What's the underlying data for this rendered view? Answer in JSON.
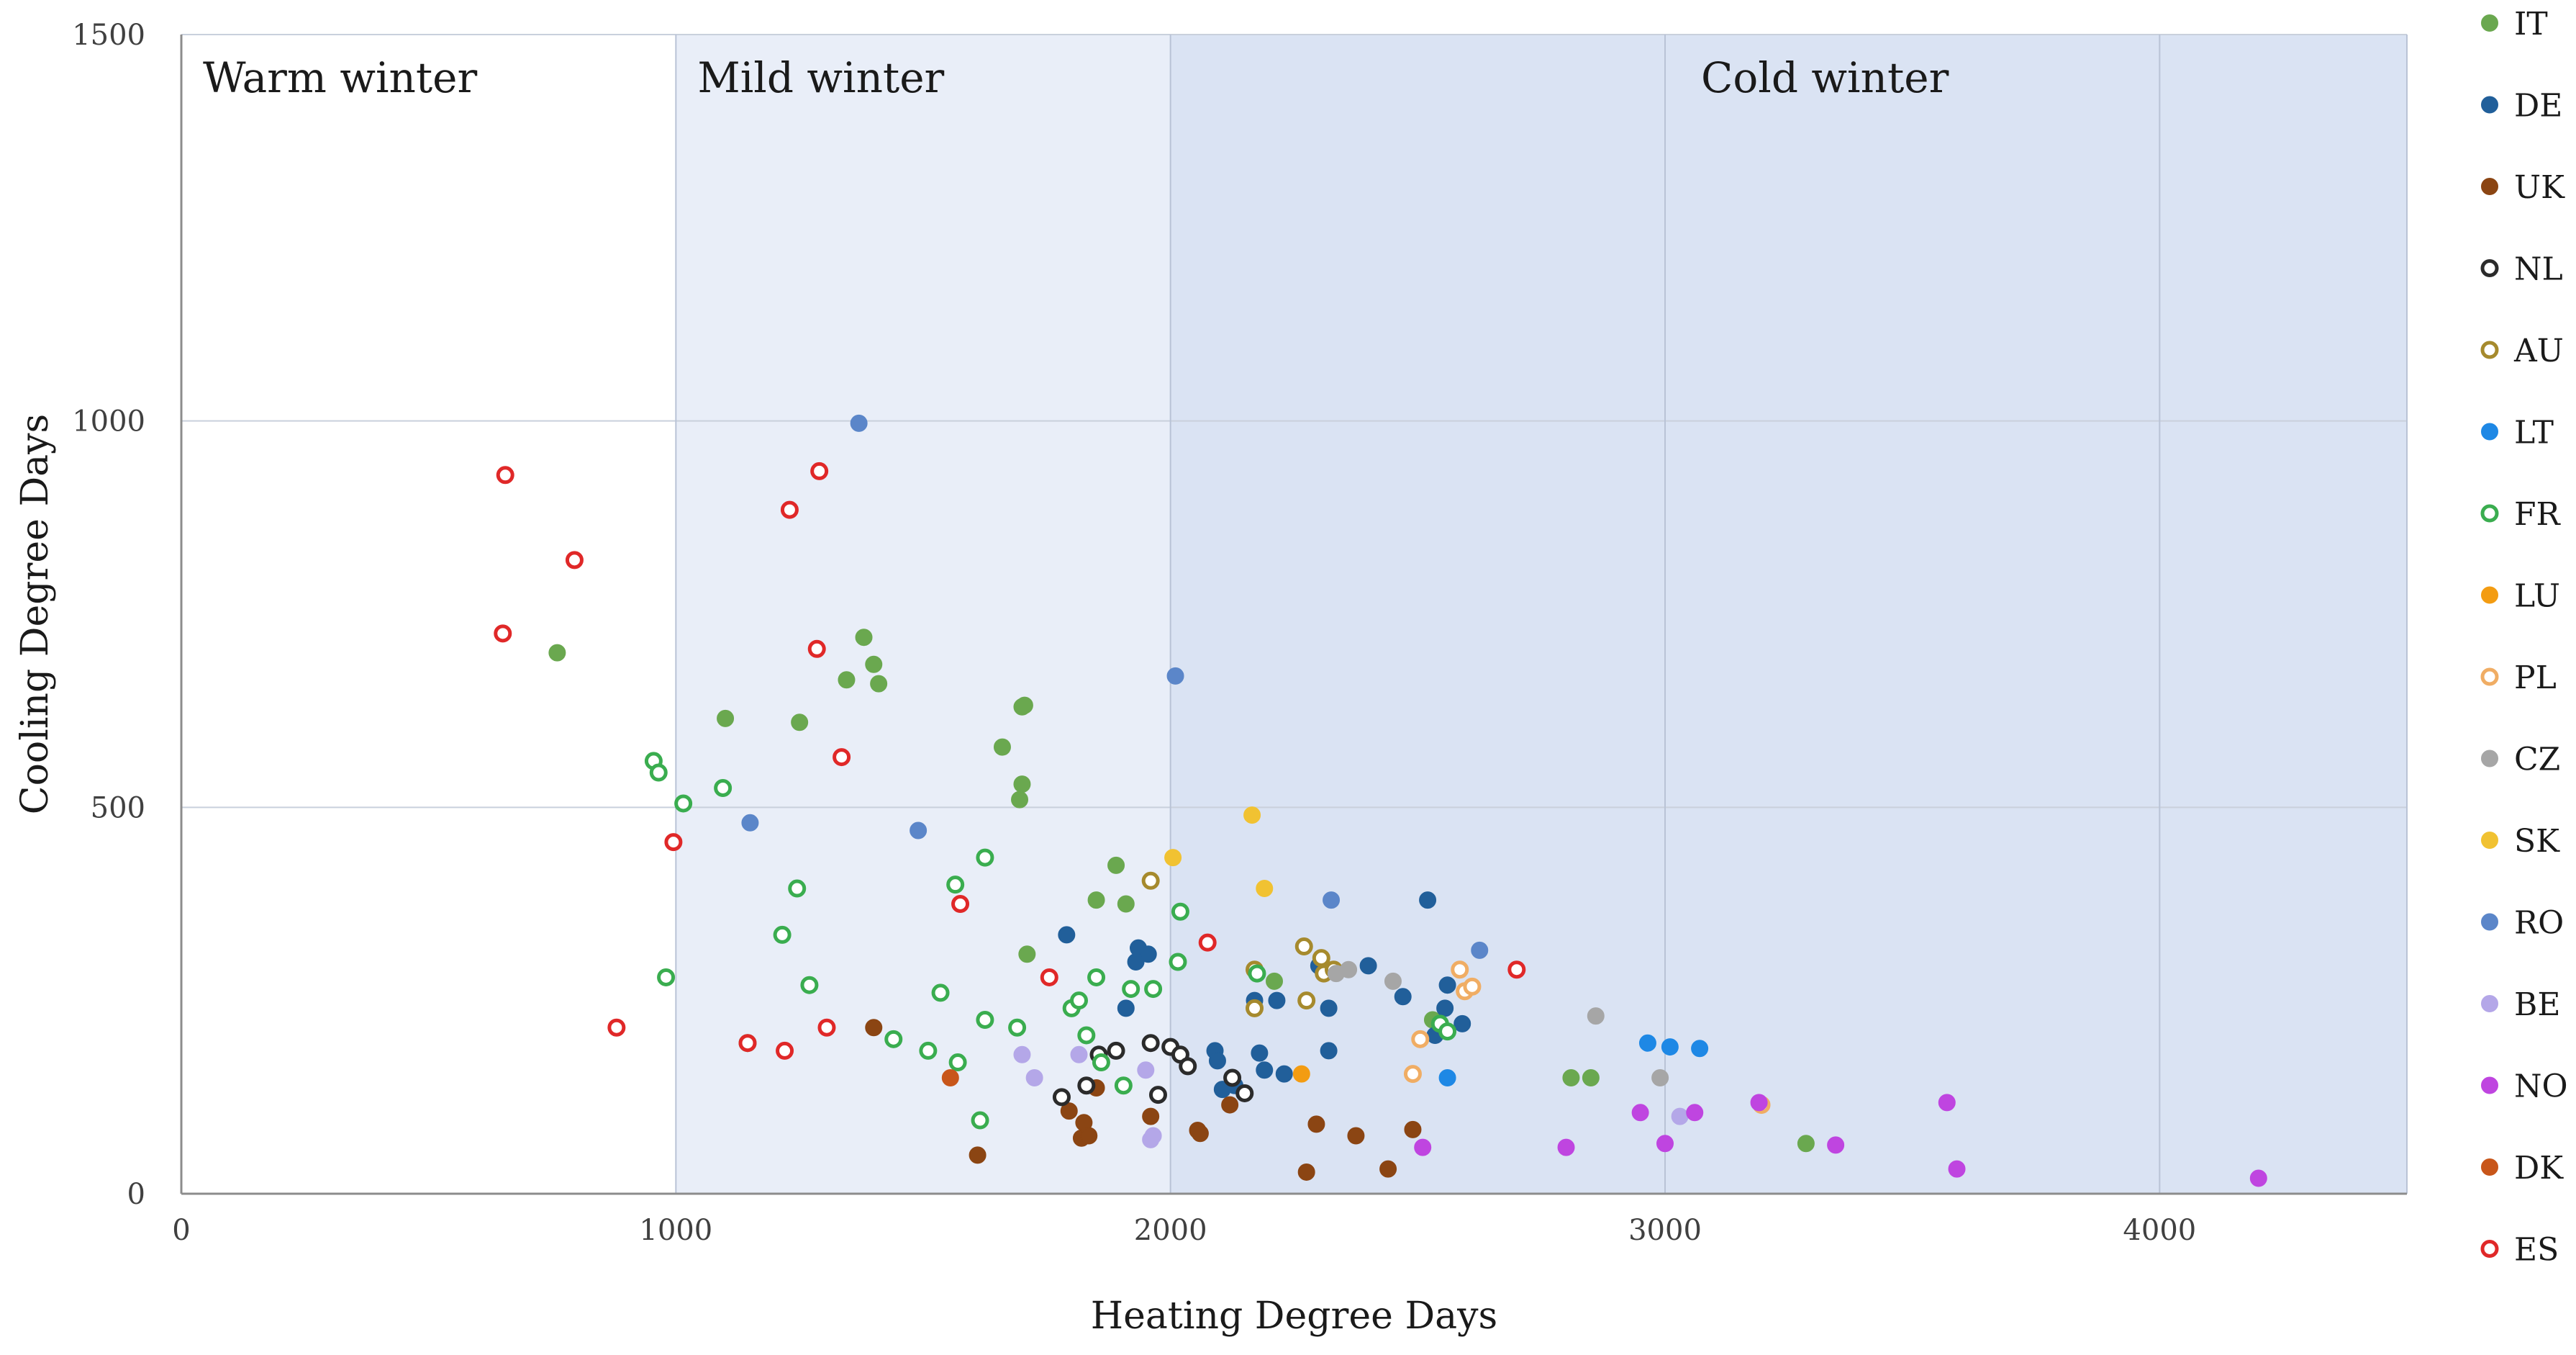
{
  "chart_data": {
    "type": "scatter",
    "title": "",
    "xlabel": "Heating Degree Days",
    "ylabel": "Cooling Degree Days",
    "xlim": [
      0,
      4500
    ],
    "ylim": [
      0,
      1500
    ],
    "x_ticks": [
      0,
      1000,
      2000,
      3000,
      4000
    ],
    "y_ticks": [
      0,
      500,
      1000,
      1500
    ],
    "x_tick_labels": [
      "0",
      "1000",
      "2000",
      "3000",
      "4000"
    ],
    "y_tick_labels": [
      "0",
      "500",
      "1000",
      "1500"
    ],
    "grid": true,
    "legend_position": "right",
    "regions": [
      {
        "label": "Warm winter",
        "x_from": 0,
        "x_to": 1000,
        "fill": "#ffffff"
      },
      {
        "label": "Mild winter",
        "x_from": 1000,
        "x_to": 2000,
        "fill": "#e9eef8"
      },
      {
        "label": "Cold winter",
        "x_from": 2000,
        "x_to": 4500,
        "fill": "#dae3f3"
      }
    ],
    "series": [
      {
        "name": "IT",
        "color": "#6aa84f",
        "filled": true,
        "points": [
          [
            760,
            700
          ],
          [
            1100,
            615
          ],
          [
            1250,
            610
          ],
          [
            1345,
            665
          ],
          [
            1380,
            720
          ],
          [
            1400,
            685
          ],
          [
            1410,
            660
          ],
          [
            1660,
            578
          ],
          [
            1700,
            630
          ],
          [
            1705,
            632
          ],
          [
            1700,
            530
          ],
          [
            1695,
            510
          ],
          [
            1710,
            310
          ],
          [
            1850,
            380
          ],
          [
            1890,
            425
          ],
          [
            1910,
            375
          ],
          [
            2210,
            275
          ],
          [
            2530,
            225
          ],
          [
            2810,
            150
          ],
          [
            2850,
            150
          ],
          [
            3285,
            65
          ]
        ]
      },
      {
        "name": "DE",
        "color": "#215f9a",
        "filled": true,
        "points": [
          [
            1790,
            335
          ],
          [
            1910,
            240
          ],
          [
            1930,
            300
          ],
          [
            1935,
            318
          ],
          [
            1955,
            310
          ],
          [
            2090,
            185
          ],
          [
            2095,
            172
          ],
          [
            2105,
            135
          ],
          [
            2130,
            140
          ],
          [
            2170,
            250
          ],
          [
            2180,
            182
          ],
          [
            2190,
            160
          ],
          [
            2215,
            250
          ],
          [
            2230,
            155
          ],
          [
            2300,
            295
          ],
          [
            2320,
            240
          ],
          [
            2320,
            185
          ],
          [
            2400,
            295
          ],
          [
            2470,
            255
          ],
          [
            2520,
            380
          ],
          [
            2535,
            205
          ],
          [
            2555,
            240
          ],
          [
            2560,
            270
          ],
          [
            2590,
            220
          ]
        ]
      },
      {
        "name": "UK",
        "color": "#8b4513",
        "filled": true,
        "points": [
          [
            1400,
            215
          ],
          [
            1610,
            50
          ],
          [
            1795,
            107
          ],
          [
            1820,
            72
          ],
          [
            1825,
            92
          ],
          [
            1835,
            75
          ],
          [
            1850,
            137
          ],
          [
            1960,
            100
          ],
          [
            2055,
            82
          ],
          [
            2060,
            78
          ],
          [
            2120,
            115
          ],
          [
            2275,
            28
          ],
          [
            2295,
            90
          ],
          [
            2375,
            75
          ],
          [
            2440,
            32
          ],
          [
            2490,
            83
          ]
        ]
      },
      {
        "name": "NL",
        "color": "#2b2b2b",
        "filled": false,
        "points": [
          [
            1780,
            125
          ],
          [
            1830,
            140
          ],
          [
            1855,
            180
          ],
          [
            1890,
            185
          ],
          [
            1960,
            195
          ],
          [
            1975,
            128
          ],
          [
            2000,
            190
          ],
          [
            2020,
            180
          ],
          [
            2035,
            165
          ],
          [
            2125,
            150
          ],
          [
            2150,
            130
          ]
        ]
      },
      {
        "name": "AU",
        "color": "#a68a2d",
        "filled": false,
        "points": [
          [
            1960,
            405
          ],
          [
            2170,
            290
          ],
          [
            2170,
            240
          ],
          [
            2270,
            320
          ],
          [
            2275,
            250
          ],
          [
            2305,
            305
          ],
          [
            2310,
            285
          ],
          [
            2330,
            290
          ]
        ]
      },
      {
        "name": "LT",
        "color": "#1e88e5",
        "filled": true,
        "points": [
          [
            2560,
            150
          ],
          [
            2965,
            195
          ],
          [
            3010,
            190
          ],
          [
            3070,
            188
          ]
        ]
      },
      {
        "name": "FR",
        "color": "#3aad4f",
        "filled": false,
        "points": [
          [
            955,
            560
          ],
          [
            965,
            545
          ],
          [
            980,
            280
          ],
          [
            1015,
            505
          ],
          [
            1095,
            525
          ],
          [
            1145,
            195
          ],
          [
            1215,
            335
          ],
          [
            1245,
            395
          ],
          [
            1270,
            270
          ],
          [
            1440,
            200
          ],
          [
            1510,
            185
          ],
          [
            1535,
            260
          ],
          [
            1565,
            400
          ],
          [
            1570,
            170
          ],
          [
            1615,
            95
          ],
          [
            1625,
            225
          ],
          [
            1625,
            435
          ],
          [
            1690,
            215
          ],
          [
            1800,
            240
          ],
          [
            1815,
            250
          ],
          [
            1830,
            205
          ],
          [
            1850,
            280
          ],
          [
            1860,
            170
          ],
          [
            1905,
            140
          ],
          [
            1920,
            265
          ],
          [
            1965,
            265
          ],
          [
            2015,
            300
          ],
          [
            2020,
            365
          ],
          [
            2175,
            285
          ],
          [
            2545,
            220
          ],
          [
            2560,
            210
          ]
        ]
      },
      {
        "name": "LU",
        "color": "#f39c12",
        "filled": true,
        "points": [
          [
            2265,
            155
          ]
        ]
      },
      {
        "name": "PL",
        "color": "#f0ad64",
        "filled": false,
        "points": [
          [
            2490,
            155
          ],
          [
            2505,
            200
          ],
          [
            2585,
            290
          ],
          [
            2595,
            262
          ],
          [
            2610,
            268
          ],
          [
            3195,
            115
          ]
        ]
      },
      {
        "name": "CZ",
        "color": "#a6a6a6",
        "filled": true,
        "points": [
          [
            2335,
            285
          ],
          [
            2360,
            290
          ],
          [
            2450,
            275
          ],
          [
            2860,
            230
          ],
          [
            2990,
            150
          ]
        ]
      },
      {
        "name": "SK",
        "color": "#f1c232",
        "filled": true,
        "points": [
          [
            2005,
            435
          ],
          [
            2165,
            490
          ],
          [
            2190,
            395
          ]
        ]
      },
      {
        "name": "RO",
        "color": "#5b86c9",
        "filled": true,
        "points": [
          [
            1150,
            480
          ],
          [
            1370,
            997
          ],
          [
            1490,
            470
          ],
          [
            2010,
            670
          ],
          [
            2325,
            380
          ],
          [
            2625,
            315
          ]
        ]
      },
      {
        "name": "BE",
        "color": "#b4a7e8",
        "filled": true,
        "points": [
          [
            1700,
            180
          ],
          [
            1725,
            150
          ],
          [
            1815,
            180
          ],
          [
            1950,
            160
          ],
          [
            1960,
            70
          ],
          [
            1965,
            75
          ],
          [
            3030,
            100
          ]
        ]
      },
      {
        "name": "NO",
        "color": "#bf45e0",
        "filled": true,
        "points": [
          [
            2510,
            60
          ],
          [
            2800,
            60
          ],
          [
            2950,
            105
          ],
          [
            3000,
            65
          ],
          [
            3060,
            105
          ],
          [
            3190,
            118
          ],
          [
            3345,
            63
          ],
          [
            3570,
            118
          ],
          [
            3590,
            32
          ],
          [
            4200,
            20
          ]
        ]
      },
      {
        "name": "DK",
        "color": "#c8561a",
        "filled": true,
        "points": [
          [
            1555,
            150
          ]
        ]
      },
      {
        "name": "ES",
        "color": "#e02828",
        "filled": false,
        "points": [
          [
            650,
            725
          ],
          [
            655,
            930
          ],
          [
            795,
            820
          ],
          [
            880,
            215
          ],
          [
            995,
            455
          ],
          [
            1145,
            195
          ],
          [
            1220,
            185
          ],
          [
            1230,
            885
          ],
          [
            1285,
            705
          ],
          [
            1290,
            935
          ],
          [
            1305,
            215
          ],
          [
            1335,
            565
          ],
          [
            1575,
            375
          ],
          [
            1755,
            280
          ],
          [
            2075,
            325
          ],
          [
            2700,
            290
          ]
        ]
      }
    ]
  }
}
